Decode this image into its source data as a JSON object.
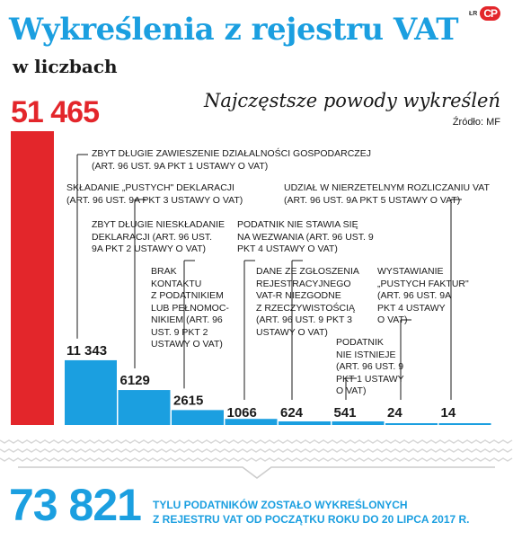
{
  "header": {
    "title": "Wykreślenia z rejestru VAT",
    "subtitle": "w liczbach",
    "logo_small": "ŁR",
    "logo_badge": "CP"
  },
  "colors": {
    "accent_blue": "#1b9fe0",
    "accent_red": "#e3262b"
  },
  "chart_data": {
    "type": "bar",
    "title": "Najczęstsze powody wykreśleń",
    "source": "Źródło: MF",
    "ylim": [
      0,
      51465
    ],
    "bars": [
      {
        "label": "51 465",
        "value": 51465,
        "color": "#e3262b"
      },
      {
        "label": "11 343",
        "value": 11343,
        "color": "#1b9fe0",
        "reason": "ZBYT DŁUGIE ZAWIESZENIE DZIAŁALNOŚCI GOSPODARCZEJ\n(ART. 96 UST. 9A PKT 1 USTAWY O VAT)"
      },
      {
        "label": "6129",
        "value": 6129,
        "color": "#1b9fe0",
        "reason": "SKŁADANIE „PUSTYCH\" DEKLARACJI\n(ART. 96 UST. 9A PKT 3 USTAWY O VAT)"
      },
      {
        "label": "2615",
        "value": 2615,
        "color": "#1b9fe0",
        "reason": "ZBYT DŁUGIE NIESKŁADANIE\nDEKLARACJI (ART. 96 UST.\n9A PKT 2 USTAWY O VAT)"
      },
      {
        "label": "1066",
        "value": 1066,
        "color": "#1b9fe0",
        "reason": "BRAK\nKONTAKTU\nZ PODATNIKIEM\nLUB PEŁNOMOC-\nNIKIEM (ART. 96\nUST. 9 PKT 2\nUSTAWY O VAT)"
      },
      {
        "label": "624",
        "value": 624,
        "color": "#1b9fe0",
        "reason": "PODATNIK NIE STAWIA SIĘ\nNA WEZWANIA (ART. 96 UST. 9\nPKT 4 USTAWY O VAT)"
      },
      {
        "label": "541",
        "value": 541,
        "color": "#1b9fe0",
        "reason": "DANE ZE ZGŁOSZENIA\nREJESTRACYJNEGO\nVAT-R NIEZGODNE\nZ RZECZYWISTOŚCIĄ\n(ART. 96 UST. 9 PKT 3\nUSTAWY O VAT)"
      },
      {
        "label": "24",
        "value": 24,
        "color": "#1b9fe0",
        "reason": "PODATNIK\nNIE ISTNIEJE\n(ART. 96 UST. 9\nPKT 1 USTAWY\nO VAT)"
      },
      {
        "label": "14",
        "value": 14,
        "color": "#1b9fe0",
        "reason": "UDZIAŁ W NIERZETELNYM ROZLICZANIU VAT\n(ART. 96 UST. 9A PKT 5 USTAWY O VAT)"
      }
    ],
    "extra_reason": "WYSTAWIANIE\n„PUSTYCH FAKTUR\"\n(ART. 96 UST. 9A\nPKT 4 USTAWY\nO VAT)"
  },
  "summary": {
    "total": "73 821",
    "text": "TYLU PODATNIKÓW ZOSTAŁO WYKREŚLONYCH\nZ REJESTRU VAT OD POCZĄTKU ROKU DO 20 LIPCA 2017 R."
  }
}
